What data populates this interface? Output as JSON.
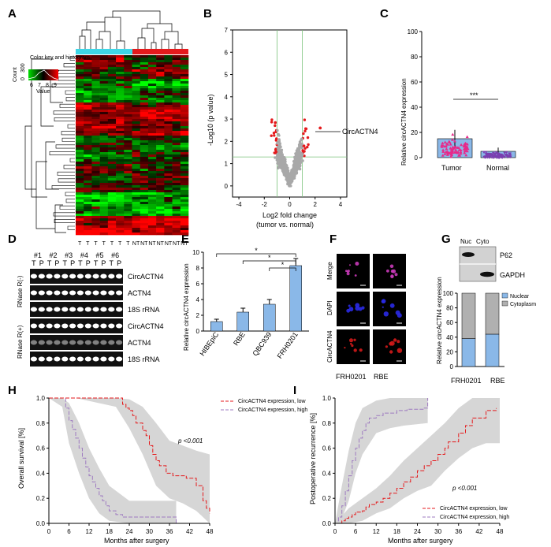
{
  "panels": [
    "A",
    "B",
    "C",
    "D",
    "E",
    "F",
    "G",
    "H",
    "I"
  ],
  "panel_a": {
    "legend_title": "Color key and histogram",
    "legend_ylabel": "Count",
    "legend_yticks": [
      "0",
      "300"
    ],
    "legend_xticks": [
      "6",
      "7",
      "8",
      "9"
    ],
    "legend_xlabel": "Value",
    "group_colors": {
      "T": "#3dd6e6",
      "NT": "#e41a1c"
    },
    "columns": [
      "T",
      "T",
      "T",
      "T",
      "T",
      "T",
      "T",
      "NT",
      "NT",
      "NT",
      "NT",
      "NT",
      "NT",
      "NT"
    ]
  },
  "panel_b": {
    "ylabel": "-Log10 (p value)",
    "xlabel": "Log2 fold change",
    "xlabel2": "(tumor vs. normal)",
    "xticks": [
      "-4",
      "-2",
      "0",
      "2",
      "4"
    ],
    "yticks": [
      "0",
      "1",
      "2",
      "3",
      "4",
      "5",
      "6",
      "7"
    ],
    "annotation": "CircACTN4",
    "colors": {
      "sig": "#e41a1c",
      "nonsig": "#a8a8a8",
      "guide": "#7ac27a"
    }
  },
  "panel_c": {
    "ylabel": "Relative circACTN4 expression",
    "yticks": [
      "0",
      "20",
      "40",
      "60",
      "80",
      "100"
    ],
    "categories": [
      "Tumor",
      "Normal"
    ],
    "significance": "***",
    "colors": {
      "tumor_bar": "#8ab8e8",
      "tumor_pts": "#e7298a",
      "normal_bar": "#8ab8e8",
      "normal_pts": "#7b3fb0"
    }
  },
  "panel_d": {
    "pairs": [
      "#1",
      "#2",
      "#3",
      "#4",
      "#5",
      "#6"
    ],
    "lane_labels": [
      "T",
      "P"
    ],
    "rows": [
      "CircACTN4",
      "ACTN4",
      "18S rRNA",
      "CircACTN4",
      "ACTN4",
      "18S rRNA"
    ],
    "groups": [
      "RNase R(-)",
      "RNase R(+)"
    ]
  },
  "panel_e": {
    "ylabel": "Relative circACTN4 expression",
    "yticks": [
      "0",
      "2",
      "4",
      "6",
      "8",
      "10"
    ],
    "categories": [
      "HIBEpiC",
      "RBE",
      "QBC939",
      "FRH0201"
    ],
    "significance": [
      "*",
      "*",
      "*"
    ],
    "bar_color": "#8ab8e8"
  },
  "panel_f": {
    "rows": [
      "Merge",
      "DAPI",
      "CircACTN4"
    ],
    "cols": [
      "FRH0201",
      "RBE"
    ]
  },
  "panel_g": {
    "blot_cols": [
      "Nuc",
      "Cyto"
    ],
    "blot_rows": [
      "P62",
      "GAPDH"
    ],
    "ylabel": "Relative circACTN4 expression",
    "yticks": [
      "0",
      "20",
      "40",
      "60",
      "80",
      "100"
    ],
    "categories": [
      "FRH0201",
      "RBE"
    ],
    "legend": [
      "Nuclear",
      "Cytoplasm"
    ],
    "colors": {
      "nuclear": "#8ab8e8",
      "cytoplasm": "#b0b0b0"
    }
  },
  "panel_h": {
    "ylabel": "Overall survival [%]",
    "xlabel": "Months after surgery",
    "xticks": [
      "0",
      "6",
      "12",
      "18",
      "24",
      "30",
      "36",
      "42",
      "48"
    ],
    "yticks": [
      "0.0",
      "0.2",
      "0.4",
      "0.6",
      "0.8",
      "1.0"
    ],
    "legend": [
      "CircACTN4 expression, low",
      "CircACTN4 expression, high"
    ],
    "pvalue": "p <0.001",
    "colors": {
      "low": "#e41a1c",
      "high": "#9e7bc0",
      "band": "#d6d6d6"
    }
  },
  "panel_i": {
    "ylabel": "Postoperative recurrence [%]",
    "xlabel": "Months after surgery",
    "xticks": [
      "0",
      "6",
      "12",
      "18",
      "24",
      "30",
      "36",
      "42",
      "48"
    ],
    "yticks": [
      "0.0",
      "0.2",
      "0.4",
      "0.6",
      "0.8",
      "1.0"
    ],
    "legend": [
      "CircACTN4 expression, low",
      "CircACTN4 expression, high"
    ],
    "pvalue": "p <0.001",
    "colors": {
      "low": "#e41a1c",
      "high": "#9e7bc0",
      "band": "#d6d6d6"
    }
  }
}
